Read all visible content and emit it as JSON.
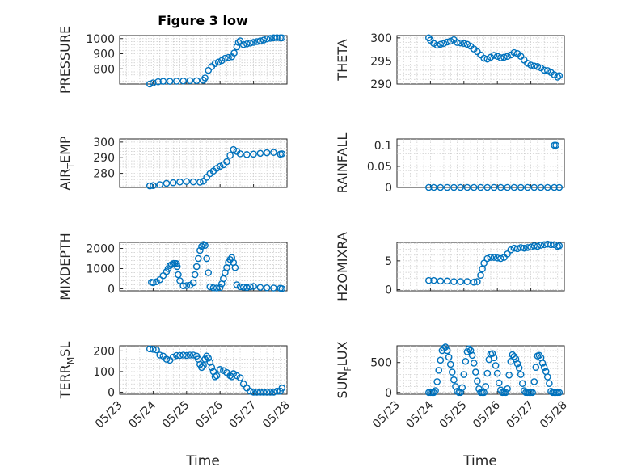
{
  "figure": {
    "title": "Figure 3 low",
    "marker_color": "#0072BD",
    "xlabel": "Time",
    "xticks": [
      "05/23",
      "05/24",
      "05/25",
      "05/26",
      "05/27",
      "05/28"
    ]
  },
  "chart_data": [
    {
      "type": "scatter",
      "ylabel": "PRESSURE",
      "x": [
        23.9,
        24.0,
        24.15,
        24.3,
        24.5,
        24.7,
        24.9,
        25.1,
        25.3,
        25.5,
        25.55,
        25.65,
        25.75,
        25.85,
        25.95,
        26.05,
        26.15,
        26.25,
        26.35,
        26.42,
        26.5,
        26.55,
        26.6,
        26.7,
        26.8,
        26.9,
        27.0,
        27.1,
        27.2,
        27.3,
        27.4,
        27.5,
        27.6,
        27.7,
        27.8,
        27.85
      ],
      "y": [
        700,
        708,
        715,
        718,
        718,
        719,
        720,
        722,
        722,
        725,
        740,
        790,
        815,
        835,
        845,
        855,
        870,
        875,
        880,
        905,
        945,
        975,
        985,
        960,
        965,
        970,
        975,
        980,
        985,
        990,
        998,
        1002,
        1005,
        1006,
        1005,
        1005
      ],
      "ylim": [
        700,
        1020
      ],
      "yticks": [
        800,
        900,
        1000
      ],
      "grid": true
    },
    {
      "type": "scatter",
      "ylabel": "THETA",
      "x": [
        23.95,
        24.0,
        24.1,
        24.2,
        24.3,
        24.4,
        24.5,
        24.6,
        24.7,
        24.8,
        24.9,
        25.0,
        25.1,
        25.2,
        25.3,
        25.4,
        25.5,
        25.6,
        25.7,
        25.8,
        25.9,
        26.0,
        26.1,
        26.2,
        26.3,
        26.4,
        26.5,
        26.6,
        26.7,
        26.8,
        26.9,
        27.0,
        27.1,
        27.2,
        27.3,
        27.4,
        27.5,
        27.6,
        27.7,
        27.8,
        27.85
      ],
      "y": [
        300.0,
        299.5,
        298.8,
        298.4,
        298.6,
        298.8,
        299.1,
        299.3,
        299.6,
        299.0,
        298.9,
        298.8,
        298.6,
        298.2,
        297.6,
        297.0,
        296.3,
        295.6,
        295.4,
        295.8,
        296.2,
        296.0,
        295.7,
        295.8,
        296.0,
        296.3,
        296.8,
        296.6,
        296.0,
        295.2,
        294.5,
        294.1,
        293.9,
        293.8,
        293.5,
        293.0,
        292.9,
        292.5,
        292.0,
        291.5,
        291.8
      ],
      "ylim": [
        290,
        300.5
      ],
      "yticks": [
        290,
        295,
        300
      ],
      "grid": true
    },
    {
      "type": "scatter",
      "ylabel_main": "AIR",
      "ylabel_sub": "T",
      "ylabel_rest": "EMP",
      "x": [
        23.9,
        24.0,
        24.2,
        24.4,
        24.6,
        24.8,
        25.0,
        25.2,
        25.4,
        25.5,
        25.6,
        25.7,
        25.8,
        25.9,
        26.0,
        26.1,
        26.2,
        26.3,
        26.4,
        26.5,
        26.6,
        26.8,
        27.0,
        27.2,
        27.4,
        27.6,
        27.8,
        27.85
      ],
      "y": [
        272,
        272.2,
        272.8,
        273.6,
        274,
        274.5,
        274.8,
        274.6,
        274.4,
        275,
        277.5,
        279.8,
        281.5,
        283.2,
        284.5,
        285.5,
        287.5,
        291.5,
        295.2,
        294,
        292.5,
        292,
        292.3,
        292.8,
        293.2,
        293.4,
        292.3,
        292.5
      ],
      "ylim": [
        271,
        302
      ],
      "yticks": [
        280,
        290,
        300
      ],
      "grid": true
    },
    {
      "type": "scatter",
      "ylabel": "RAINFALL",
      "x": [
        23.95,
        24.1,
        24.3,
        24.5,
        24.7,
        24.9,
        25.1,
        25.3,
        25.5,
        25.7,
        25.9,
        26.1,
        26.3,
        26.5,
        26.7,
        26.9,
        27.1,
        27.3,
        27.5,
        27.7,
        27.85,
        27.7,
        27.75
      ],
      "y": [
        0,
        0,
        0,
        0,
        0,
        0,
        0,
        0,
        0,
        0,
        0,
        0,
        0,
        0,
        0,
        0,
        0,
        0,
        0,
        0,
        0,
        0.1,
        0.1
      ],
      "ylim": [
        0,
        0.115
      ],
      "yticks": [
        0,
        0.05,
        0.1
      ],
      "ytick_labels": [
        "0",
        "0.05",
        "0.1"
      ],
      "grid": true
    },
    {
      "type": "scatter",
      "ylabel": "MIXDEPTH",
      "x": [
        23.95,
        24.0,
        24.1,
        24.2,
        24.3,
        24.4,
        24.45,
        24.5,
        24.55,
        24.6,
        24.65,
        24.7,
        24.72,
        24.75,
        24.8,
        24.9,
        25.0,
        25.1,
        25.2,
        25.25,
        25.3,
        25.35,
        25.4,
        25.45,
        25.5,
        25.55,
        25.6,
        25.65,
        25.7,
        25.8,
        25.9,
        26.0,
        26.05,
        26.1,
        26.15,
        26.2,
        26.25,
        26.3,
        26.35,
        26.4,
        26.45,
        26.5,
        26.6,
        26.7,
        26.8,
        26.9,
        27.0,
        27.2,
        27.4,
        27.6,
        27.8,
        27.85
      ],
      "y": [
        330,
        300,
        350,
        450,
        650,
        850,
        1000,
        1150,
        1200,
        1250,
        1260,
        1250,
        1100,
        700,
        400,
        150,
        160,
        180,
        300,
        700,
        1100,
        1500,
        1900,
        2100,
        2200,
        2150,
        1500,
        800,
        100,
        50,
        40,
        60,
        250,
        500,
        800,
        1050,
        1300,
        1450,
        1550,
        1300,
        1050,
        200,
        100,
        80,
        60,
        100,
        120,
        70,
        50,
        40,
        30,
        10
      ],
      "ylim": [
        -100,
        2300
      ],
      "yticks": [
        0,
        1000,
        2000
      ],
      "grid": true
    },
    {
      "type": "scatter",
      "ylabel": "H2OMIXRA",
      "x": [
        23.95,
        24.1,
        24.3,
        24.5,
        24.7,
        24.9,
        25.1,
        25.3,
        25.4,
        25.5,
        25.55,
        25.6,
        25.7,
        25.8,
        25.9,
        26.0,
        26.1,
        26.2,
        26.3,
        26.4,
        26.5,
        26.6,
        26.7,
        26.8,
        26.9,
        27.0,
        27.1,
        27.2,
        27.3,
        27.4,
        27.5,
        27.6,
        27.7,
        27.8,
        27.85
      ],
      "y": [
        1.6,
        1.6,
        1.5,
        1.5,
        1.4,
        1.4,
        1.4,
        1.3,
        1.4,
        2.5,
        3.6,
        4.6,
        5.4,
        5.6,
        5.6,
        5.5,
        5.4,
        5.6,
        6.2,
        6.9,
        7.2,
        7.1,
        7.3,
        7.2,
        7.3,
        7.4,
        7.6,
        7.5,
        7.7,
        7.8,
        7.9,
        7.8,
        7.8,
        7.5,
        7.6
      ],
      "ylim": [
        -0.2,
        8.2
      ],
      "yticks": [
        0,
        5
      ],
      "grid": true
    },
    {
      "type": "scatter",
      "ylabel_main": "TERR",
      "ylabel_sub": "M",
      "ylabel_rest": "SL",
      "x": [
        23.9,
        24.0,
        24.1,
        24.2,
        24.3,
        24.4,
        24.5,
        24.6,
        24.7,
        24.8,
        24.9,
        25.0,
        25.1,
        25.2,
        25.3,
        25.35,
        25.4,
        25.45,
        25.5,
        25.55,
        25.6,
        25.65,
        25.7,
        25.75,
        25.8,
        25.85,
        25.9,
        26.0,
        26.1,
        26.2,
        26.3,
        26.35,
        26.4,
        26.5,
        26.6,
        26.7,
        26.8,
        26.9,
        27.0,
        27.1,
        27.2,
        27.3,
        27.4,
        27.5,
        27.6,
        27.7,
        27.8,
        27.85
      ],
      "y": [
        210,
        208,
        205,
        180,
        175,
        160,
        155,
        170,
        178,
        178,
        180,
        178,
        180,
        180,
        175,
        160,
        135,
        120,
        130,
        160,
        175,
        165,
        145,
        120,
        100,
        75,
        80,
        110,
        105,
        95,
        80,
        75,
        90,
        80,
        70,
        40,
        20,
        5,
        0,
        0,
        0,
        0,
        0,
        0,
        0,
        5,
        5,
        20
      ],
      "ylim": [
        -10,
        225
      ],
      "yticks": [
        0,
        100,
        200
      ],
      "grid": true
    },
    {
      "type": "scatter",
      "ylabel_main": "SUN",
      "ylabel_sub": "F",
      "ylabel_rest": "LUX",
      "x": [
        23.95,
        24.0,
        24.05,
        24.1,
        24.15,
        24.2,
        24.25,
        24.3,
        24.35,
        24.4,
        24.45,
        24.5,
        24.55,
        24.6,
        24.65,
        24.7,
        24.75,
        24.8,
        24.85,
        24.9,
        24.95,
        25.0,
        25.05,
        25.1,
        25.15,
        25.2,
        25.25,
        25.3,
        25.35,
        25.4,
        25.45,
        25.5,
        25.55,
        25.6,
        25.65,
        25.7,
        25.75,
        25.8,
        25.85,
        25.9,
        25.95,
        26.0,
        26.05,
        26.1,
        26.15,
        26.2,
        26.25,
        26.3,
        26.35,
        26.4,
        26.45,
        26.5,
        26.55,
        26.6,
        26.65,
        26.7,
        26.75,
        26.8,
        26.85,
        26.9,
        26.95,
        27.0,
        27.05,
        27.1,
        27.15,
        27.2,
        27.25,
        27.3,
        27.35,
        27.4,
        27.45,
        27.5,
        27.55,
        27.6,
        27.65,
        27.7,
        27.75,
        27.8,
        27.85
      ],
      "y": [
        0,
        0,
        0,
        0,
        30,
        180,
        370,
        540,
        700,
        740,
        760,
        700,
        590,
        470,
        340,
        210,
        100,
        20,
        0,
        0,
        80,
        300,
        520,
        680,
        730,
        700,
        620,
        490,
        340,
        190,
        60,
        0,
        0,
        0,
        100,
        320,
        550,
        640,
        650,
        580,
        450,
        320,
        160,
        40,
        0,
        0,
        0,
        60,
        290,
        520,
        630,
        600,
        560,
        480,
        410,
        300,
        150,
        30,
        0,
        0,
        0,
        0,
        0,
        180,
        420,
        610,
        620,
        580,
        490,
        420,
        350,
        260,
        150,
        20,
        0,
        0,
        0,
        0,
        0
      ],
      "ylim": [
        -30,
        780
      ],
      "yticks": [
        0,
        500
      ],
      "grid": true
    }
  ]
}
